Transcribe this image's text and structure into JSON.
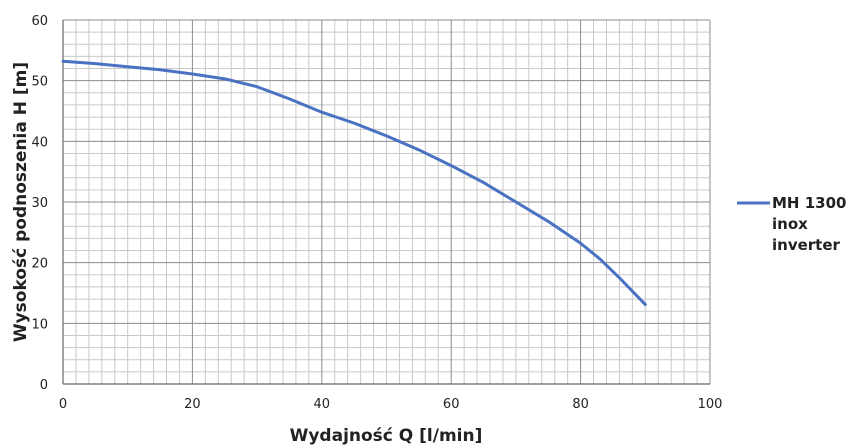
{
  "chart_data": {
    "type": "line",
    "title": "",
    "xlabel": "Wydajność Q [l/min]",
    "ylabel": "Wysokość podnoszenia H [m]",
    "xlim": [
      0,
      100
    ],
    "ylim": [
      0,
      60
    ],
    "x_ticks": [
      0,
      20,
      40,
      60,
      80,
      100
    ],
    "y_ticks": [
      0,
      10,
      20,
      30,
      40,
      50,
      60
    ],
    "grid": true,
    "legend_position": "right",
    "series": [
      {
        "name": "MH 1300 inox inverter",
        "name_lines": [
          "MH 1300",
          "inox",
          "inverter"
        ],
        "color": "#4a72c2",
        "points": [
          [
            0,
            53.2
          ],
          [
            5,
            52.8
          ],
          [
            10,
            52.3
          ],
          [
            15,
            51.8
          ],
          [
            20,
            51.1
          ],
          [
            25,
            50.3
          ],
          [
            30,
            49.0
          ],
          [
            35,
            47.0
          ],
          [
            40,
            44.8
          ],
          [
            45,
            43.0
          ],
          [
            50,
            40.9
          ],
          [
            55,
            38.6
          ],
          [
            60,
            36.0
          ],
          [
            65,
            33.2
          ],
          [
            70,
            30.0
          ],
          [
            75,
            26.8
          ],
          [
            80,
            23.2
          ],
          [
            83,
            20.6
          ],
          [
            86,
            17.5
          ],
          [
            88,
            15.3
          ],
          [
            90,
            13.1
          ]
        ]
      }
    ]
  }
}
